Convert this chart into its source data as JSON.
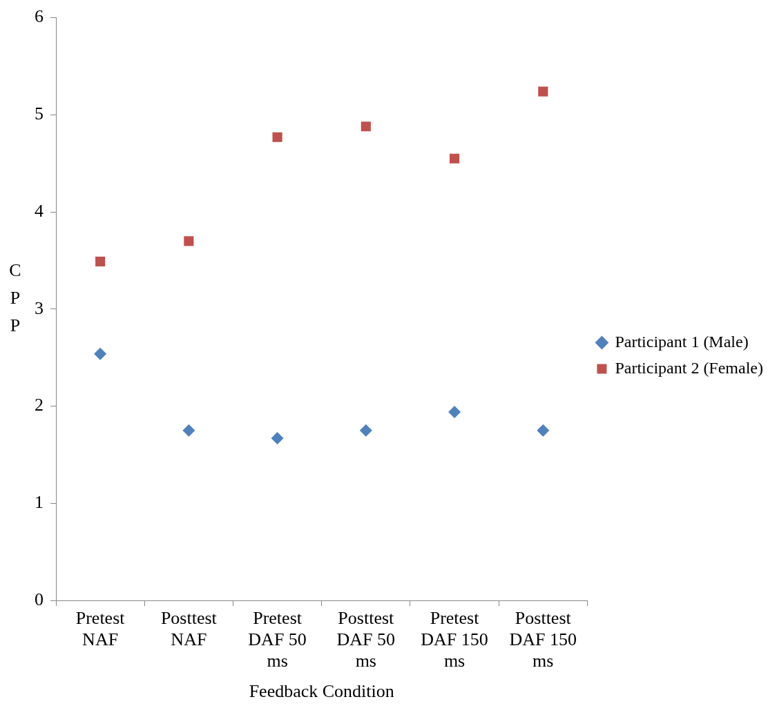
{
  "chart_data": {
    "type": "scatter",
    "xlabel": "Feedback Condition",
    "ylabel": "CPP",
    "categories": [
      "Pretest NAF",
      "Posttest NAF",
      "Pretest DAF 50 ms",
      "Posttest DAF 50 ms",
      "Pretest DAF 150 ms",
      "Posttest DAF 150 ms"
    ],
    "series": [
      {
        "name": "Participant 1 (Male)",
        "color": "#4f81bd",
        "marker": "diamond",
        "values": [
          2.54,
          1.75,
          1.67,
          1.75,
          1.94,
          1.75
        ]
      },
      {
        "name": "Participant 2 (Female)",
        "color": "#c0504d",
        "marker": "square",
        "values": [
          3.49,
          3.7,
          4.77,
          4.88,
          4.55,
          5.24
        ]
      }
    ],
    "ylim": [
      0,
      6
    ],
    "yticks": [
      0,
      1,
      2,
      3,
      4,
      5,
      6
    ],
    "grid": false,
    "legend": "right"
  }
}
